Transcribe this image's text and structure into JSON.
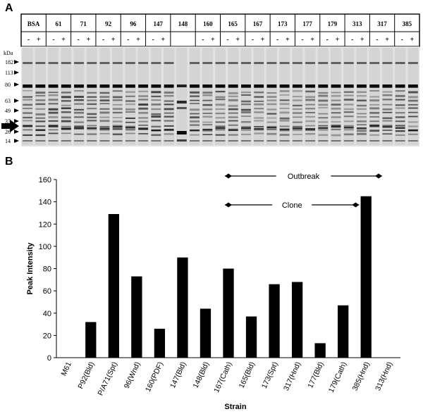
{
  "panel_a": {
    "label": "A",
    "lane_headers": [
      "BSA",
      "61",
      "71",
      "92",
      "96",
      "147",
      "148",
      "160",
      "165",
      "167",
      "173",
      "177",
      "179",
      "313",
      "317",
      "385"
    ],
    "sign_minus": "-",
    "sign_plus": "+",
    "unit_label": "kDa",
    "markers": [
      "182",
      "113",
      "80",
      "63",
      "49",
      "37",
      "26",
      "14"
    ]
  },
  "panel_b": {
    "label": "B",
    "annotations": [
      {
        "label": "Outbreak"
      },
      {
        "label": "Clone"
      }
    ]
  },
  "chart_data": {
    "type": "bar",
    "categories": [
      "M61",
      "P92(Bld)",
      "P/A71(Spt)",
      "96(Wnd)",
      "160(PDF)",
      "147(Bld)",
      "148(Bld)",
      "167(Cath)",
      "165(Bld)",
      "173(Spt)",
      "317(Hnd)",
      "177(Bld)",
      "179(Cath)",
      "385(Hnd)",
      "313(Hnd)"
    ],
    "values": [
      0,
      32,
      129,
      73,
      26,
      90,
      44,
      80,
      37,
      66,
      68,
      13,
      47,
      145,
      0
    ],
    "xlabel": "Strain",
    "ylabel": "Peak Intensity",
    "ylim": [
      0,
      160
    ],
    "yticks": [
      "0",
      "20",
      "40",
      "60",
      "80",
      "100",
      "120",
      "140",
      "160"
    ],
    "bar_color": "#000000",
    "grid": false
  }
}
